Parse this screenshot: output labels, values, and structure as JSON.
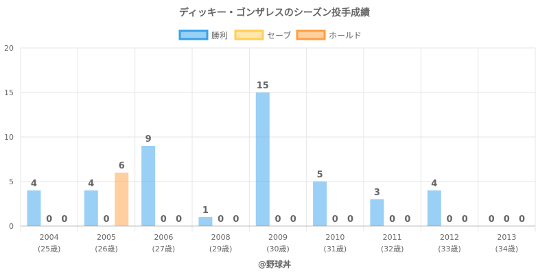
{
  "chart_data": {
    "type": "bar",
    "title": "ディッキー・ゴンザレスのシーズン投手成績",
    "categories": [
      "2004",
      "2005",
      "2006",
      "2008",
      "2009",
      "2010",
      "2011",
      "2012",
      "2013"
    ],
    "ages": [
      "(25歳)",
      "(26歳)",
      "(27歳)",
      "(29歳)",
      "(30歳)",
      "(31歳)",
      "(32歳)",
      "(33歳)",
      "(34歳)"
    ],
    "series": [
      {
        "name": "勝利",
        "values": [
          4,
          4,
          9,
          1,
          15,
          5,
          3,
          4,
          0
        ],
        "fill": "rgba(54,162,235,0.5)",
        "stroke": "#36a2eb"
      },
      {
        "name": "セーブ",
        "values": [
          0,
          0,
          0,
          0,
          0,
          0,
          0,
          0,
          0
        ],
        "fill": "rgba(255,206,86,0.5)",
        "stroke": "#ffce56"
      },
      {
        "name": "ホールド",
        "values": [
          0,
          6,
          0,
          0,
          0,
          0,
          0,
          0,
          0
        ],
        "fill": "rgba(255,159,64,0.5)",
        "stroke": "#ff9f40"
      }
    ],
    "ylim": [
      0,
      20
    ],
    "yticks": [
      0,
      5,
      10,
      15,
      20
    ],
    "grid": true,
    "legend": "top"
  },
  "credit": "@野球丼"
}
